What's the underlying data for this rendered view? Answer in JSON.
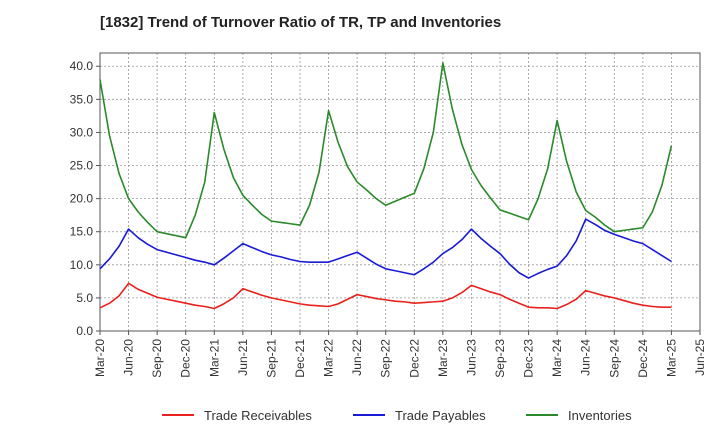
{
  "chart_data": {
    "type": "line",
    "title": "[1832]  Trend of Turnover Ratio of TR, TP and Inventories",
    "xlabel": "",
    "ylabel": "",
    "ylim": [
      0,
      42
    ],
    "y_ticks": [
      "0.0",
      "5.0",
      "10.0",
      "15.0",
      "20.0",
      "25.0",
      "30.0",
      "35.0",
      "40.0"
    ],
    "x_ticks": [
      "Mar-20",
      "Jun-20",
      "Sep-20",
      "Dec-20",
      "Mar-21",
      "Jun-21",
      "Sep-21",
      "Dec-21",
      "Mar-22",
      "Jun-22",
      "Sep-22",
      "Dec-22",
      "Mar-23",
      "Jun-23",
      "Sep-23",
      "Dec-23",
      "Mar-24",
      "Jun-24",
      "Sep-24",
      "Dec-24",
      "Mar-25",
      "Jun-25"
    ],
    "grid": true,
    "legend_position": "bottom",
    "x_months": [
      "2020-03",
      "2020-04",
      "2020-05",
      "2020-06",
      "2020-07",
      "2020-08",
      "2020-09",
      "2020-10",
      "2020-11",
      "2020-12",
      "2021-01",
      "2021-02",
      "2021-03",
      "2021-04",
      "2021-05",
      "2021-06",
      "2021-07",
      "2021-08",
      "2021-09",
      "2021-10",
      "2021-11",
      "2021-12",
      "2022-01",
      "2022-02",
      "2022-03",
      "2022-04",
      "2022-05",
      "2022-06",
      "2022-07",
      "2022-08",
      "2022-09",
      "2022-10",
      "2022-11",
      "2022-12",
      "2023-01",
      "2023-02",
      "2023-03",
      "2023-04",
      "2023-05",
      "2023-06",
      "2023-07",
      "2023-08",
      "2023-09",
      "2023-10",
      "2023-11",
      "2023-12",
      "2024-01",
      "2024-02",
      "2024-03",
      "2024-04",
      "2024-05",
      "2024-06",
      "2024-07",
      "2024-08",
      "2024-09",
      "2024-10",
      "2024-11",
      "2024-12",
      "2025-01",
      "2025-02",
      "2025-03"
    ],
    "series": [
      {
        "name": "Trade Receivables",
        "color": "#e8211d",
        "values": [
          3.5,
          4.2,
          5.3,
          7.2,
          6.3,
          5.7,
          5.1,
          4.8,
          4.5,
          4.2,
          3.9,
          3.7,
          3.4,
          4.1,
          5.0,
          6.4,
          5.9,
          5.4,
          5.0,
          4.7,
          4.4,
          4.1,
          3.9,
          3.8,
          3.7,
          4.1,
          4.8,
          5.5,
          5.2,
          4.9,
          4.7,
          4.5,
          4.4,
          4.2,
          4.3,
          4.4,
          4.5,
          5.0,
          5.8,
          6.9,
          6.4,
          5.9,
          5.5,
          4.8,
          4.2,
          3.6,
          3.5,
          3.5,
          3.4,
          4.0,
          4.8,
          6.1,
          5.7,
          5.3,
          5.0,
          4.6,
          4.2,
          3.9,
          3.7,
          3.6,
          3.6
        ]
      },
      {
        "name": "Trade Payables",
        "color": "#1a1ad6",
        "values": [
          9.4,
          10.9,
          12.8,
          15.4,
          14.1,
          13.1,
          12.3,
          11.9,
          11.5,
          11.1,
          10.7,
          10.4,
          10.0,
          11.0,
          12.1,
          13.2,
          12.6,
          12.0,
          11.5,
          11.2,
          10.8,
          10.5,
          10.4,
          10.4,
          10.4,
          10.9,
          11.4,
          11.9,
          11.0,
          10.1,
          9.4,
          9.1,
          8.8,
          8.5,
          9.4,
          10.4,
          11.7,
          12.6,
          13.8,
          15.4,
          14.0,
          12.8,
          11.7,
          10.1,
          8.8,
          8.0,
          8.7,
          9.3,
          9.8,
          11.4,
          13.6,
          16.9,
          16.1,
          15.2,
          14.6,
          14.1,
          13.6,
          13.2,
          12.3,
          11.4,
          10.5
        ]
      },
      {
        "name": "Inventories",
        "color": "#2a8a2a",
        "values": [
          38.0,
          29.5,
          23.8,
          20.0,
          18.0,
          16.4,
          15.0,
          14.7,
          14.4,
          14.1,
          17.5,
          22.5,
          33.0,
          27.5,
          23.2,
          20.5,
          19.0,
          17.6,
          16.6,
          16.4,
          16.2,
          16.0,
          19.0,
          24.0,
          33.3,
          28.5,
          24.8,
          22.5,
          21.3,
          20.0,
          19.0,
          19.6,
          20.2,
          20.8,
          24.5,
          30.0,
          40.5,
          33.5,
          28.2,
          24.4,
          22.0,
          20.1,
          18.3,
          17.8,
          17.3,
          16.8,
          20.0,
          24.5,
          31.8,
          25.6,
          21.0,
          18.2,
          17.2,
          16.0,
          15.0,
          15.2,
          15.4,
          15.6,
          18.0,
          22.0,
          28.0
        ]
      }
    ]
  }
}
